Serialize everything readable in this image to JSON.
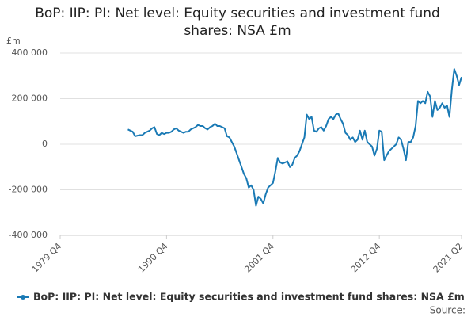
{
  "chart_data": {
    "type": "line",
    "title": "BoP: IIP: PI: Net level: Equity securities and investment fund shares: NSA £m",
    "y_label": "£m",
    "source": "Source:",
    "categories": [
      "1979 Q4",
      "1980 Q1",
      "1980 Q2",
      "1980 Q3",
      "1980 Q4",
      "1981 Q1",
      "1981 Q2",
      "1981 Q3",
      "1981 Q4",
      "1982 Q1",
      "1982 Q2",
      "1982 Q3",
      "1982 Q4",
      "1983 Q1",
      "1983 Q2",
      "1983 Q3",
      "1983 Q4",
      "1984 Q1",
      "1984 Q2",
      "1984 Q3",
      "1984 Q4",
      "1985 Q1",
      "1985 Q2",
      "1985 Q3",
      "1985 Q4",
      "1986 Q1",
      "1986 Q2",
      "1986 Q3",
      "1986 Q4",
      "1987 Q1",
      "1987 Q2",
      "1987 Q3",
      "1987 Q4",
      "1988 Q1",
      "1988 Q2",
      "1988 Q3",
      "1988 Q4",
      "1989 Q1",
      "1989 Q2",
      "1989 Q3",
      "1989 Q4",
      "1990 Q1",
      "1990 Q2",
      "1990 Q3",
      "1990 Q4",
      "1991 Q1",
      "1991 Q2",
      "1991 Q3",
      "1991 Q4",
      "1992 Q1",
      "1992 Q2",
      "1992 Q3",
      "1992 Q4",
      "1993 Q1",
      "1993 Q2",
      "1993 Q3",
      "1993 Q4",
      "1994 Q1",
      "1994 Q2",
      "1994 Q3",
      "1994 Q4",
      "1995 Q1",
      "1995 Q2",
      "1995 Q3",
      "1995 Q4",
      "1996 Q1",
      "1996 Q2",
      "1996 Q3",
      "1996 Q4",
      "1997 Q1",
      "1997 Q2",
      "1997 Q3",
      "1997 Q4",
      "1998 Q1",
      "1998 Q2",
      "1998 Q3",
      "1998 Q4",
      "1999 Q1",
      "1999 Q2",
      "1999 Q3",
      "1999 Q4",
      "2000 Q1",
      "2000 Q2",
      "2000 Q3",
      "2000 Q4",
      "2001 Q1",
      "2001 Q2",
      "2001 Q3",
      "2001 Q4",
      "2002 Q1",
      "2002 Q2",
      "2002 Q3",
      "2002 Q4",
      "2003 Q1",
      "2003 Q2",
      "2003 Q3",
      "2003 Q4",
      "2004 Q1",
      "2004 Q2",
      "2004 Q3",
      "2004 Q4",
      "2005 Q1",
      "2005 Q2",
      "2005 Q3",
      "2005 Q4",
      "2006 Q1",
      "2006 Q2",
      "2006 Q3",
      "2006 Q4",
      "2007 Q1",
      "2007 Q2",
      "2007 Q3",
      "2007 Q4",
      "2008 Q1",
      "2008 Q2",
      "2008 Q3",
      "2008 Q4",
      "2009 Q1",
      "2009 Q2",
      "2009 Q3",
      "2009 Q4",
      "2010 Q1",
      "2010 Q2",
      "2010 Q3",
      "2010 Q4",
      "2011 Q1",
      "2011 Q2",
      "2011 Q3",
      "2011 Q4",
      "2012 Q1",
      "2012 Q2",
      "2012 Q3",
      "2012 Q4",
      "2013 Q1",
      "2013 Q2",
      "2013 Q3",
      "2013 Q4",
      "2014 Q1",
      "2014 Q2",
      "2014 Q3",
      "2014 Q4",
      "2015 Q1",
      "2015 Q2",
      "2015 Q3",
      "2015 Q4",
      "2016 Q1",
      "2016 Q2",
      "2016 Q3",
      "2016 Q4",
      "2017 Q1",
      "2017 Q2",
      "2017 Q3",
      "2017 Q4",
      "2018 Q1",
      "2018 Q2",
      "2018 Q3",
      "2018 Q4",
      "2019 Q1",
      "2019 Q2",
      "2019 Q3",
      "2019 Q4",
      "2020 Q1",
      "2020 Q2",
      "2020 Q3",
      "2020 Q4",
      "2021 Q1",
      "2021 Q2"
    ],
    "xticks": [
      "1979 Q4",
      "1990 Q4",
      "2001 Q4",
      "2012 Q4",
      "2021 Q2"
    ],
    "series": [
      {
        "name": "BoP: IIP: PI: Net level: Equity securities and investment fund shares: NSA £m",
        "color": "#1a7ab5",
        "values": [
          null,
          null,
          null,
          null,
          null,
          null,
          null,
          null,
          null,
          null,
          null,
          null,
          null,
          null,
          null,
          null,
          null,
          null,
          null,
          null,
          null,
          null,
          null,
          null,
          null,
          null,
          null,
          null,
          65000,
          60000,
          55000,
          35000,
          38000,
          40000,
          40000,
          50000,
          55000,
          60000,
          70000,
          75000,
          45000,
          40000,
          50000,
          45000,
          50000,
          50000,
          55000,
          65000,
          70000,
          60000,
          55000,
          50000,
          55000,
          55000,
          65000,
          70000,
          75000,
          85000,
          80000,
          80000,
          70000,
          65000,
          75000,
          80000,
          90000,
          80000,
          80000,
          75000,
          70000,
          35000,
          30000,
          10000,
          -10000,
          -40000,
          -70000,
          -100000,
          -130000,
          -150000,
          -190000,
          -180000,
          -200000,
          -270000,
          -230000,
          -240000,
          -260000,
          -220000,
          -190000,
          -180000,
          -170000,
          -120000,
          -60000,
          -80000,
          -85000,
          -80000,
          -75000,
          -100000,
          -90000,
          -60000,
          -50000,
          -30000,
          0,
          30000,
          130000,
          110000,
          120000,
          60000,
          55000,
          70000,
          75000,
          60000,
          80000,
          110000,
          120000,
          110000,
          130000,
          135000,
          110000,
          90000,
          50000,
          40000,
          20000,
          30000,
          10000,
          20000,
          60000,
          20000,
          60000,
          10000,
          0,
          -10000,
          -50000,
          -20000,
          60000,
          55000,
          -70000,
          -50000,
          -30000,
          -20000,
          -10000,
          0,
          30000,
          20000,
          -20000,
          -70000,
          10000,
          10000,
          30000,
          80000,
          190000,
          180000,
          190000,
          180000,
          230000,
          210000,
          120000,
          190000,
          150000,
          160000,
          180000,
          160000,
          170000,
          120000,
          240000,
          330000,
          300000,
          260000,
          295000
        ]
      }
    ],
    "ylim": [
      -400000,
      400000
    ],
    "yticks": [
      {
        "value": -400000,
        "label": "-400 000"
      },
      {
        "value": -200000,
        "label": "-200 000"
      },
      0,
      {
        "value": 200000,
        "label": "200 000"
      },
      {
        "value": 400000,
        "label": "400 000"
      }
    ],
    "grid": true
  }
}
